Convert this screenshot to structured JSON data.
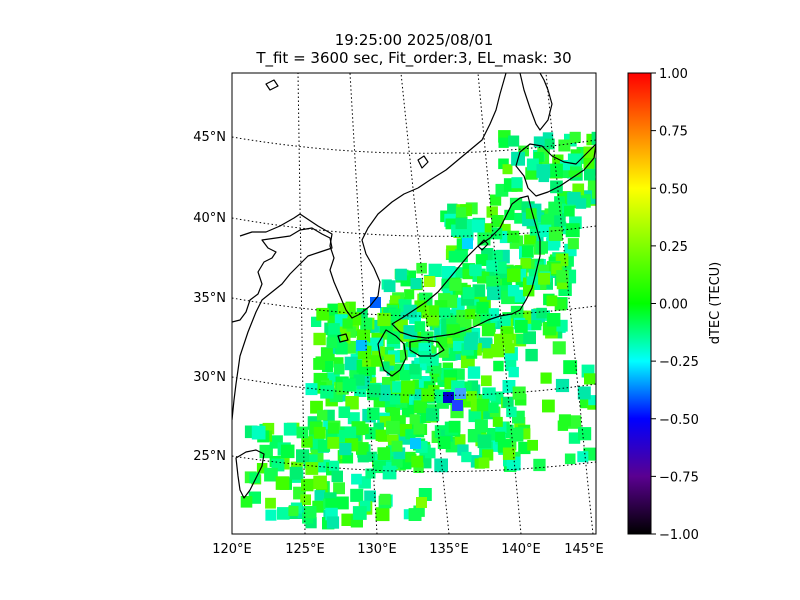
{
  "title_line1": "19:25:00 2025/08/01",
  "title_line2": "T_fit = 3600 sec, Fit_order:3, EL_mask: 30",
  "lat_labels": [
    "45°N",
    "40°N",
    "35°N",
    "30°N",
    "25°N"
  ],
  "lon_labels": [
    "120°E",
    "125°E",
    "130°E",
    "135°E",
    "140°E",
    "145°E"
  ],
  "colorbar": {
    "label": "dTEC (TECU)",
    "ticks": [
      "1.00",
      "0.75",
      "0.50",
      "0.25",
      "0.00",
      "−0.25",
      "−0.50",
      "−0.75",
      "−1.00"
    ],
    "range": [
      -1,
      1
    ]
  },
  "map": {
    "projection": "lambert-conic",
    "lon_range": [
      120,
      145
    ],
    "lat_range": [
      20,
      48
    ],
    "grid": "dotted",
    "coastline_color": "#000000"
  }
}
